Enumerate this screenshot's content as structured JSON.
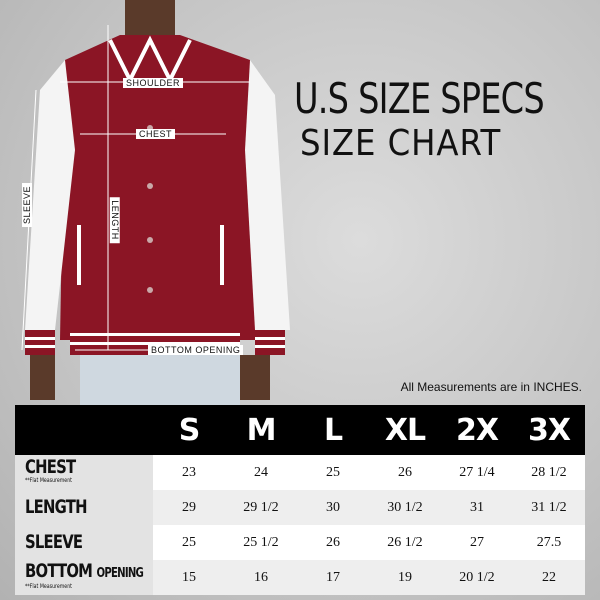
{
  "title": "U.S SIZE SPECS",
  "subtitle": "SIZE CHART",
  "note": "All Measurements are in INCHES.",
  "diagram_labels": {
    "shoulder": "SHOULDER",
    "chest": "CHEST",
    "sleeve": "SLEEVE",
    "length": "LENGTH",
    "bottom_opening": "BOTTOM OPENING"
  },
  "colors": {
    "jacket_body": "#8b1525",
    "sleeves": "#f4f4f4",
    "header_bg": "#000000"
  },
  "table": {
    "sizes": [
      "S",
      "M",
      "L",
      "XL",
      "2X",
      "3X"
    ],
    "rows": [
      {
        "label": "CHEST",
        "label_suffix": "",
        "footnote": "**Flat Measurement",
        "values": [
          "23",
          "24",
          "25",
          "26",
          "27 1/4",
          "28 1/2"
        ]
      },
      {
        "label": "LENGTH",
        "label_suffix": "",
        "footnote": "",
        "values": [
          "29",
          "29 1/2",
          "30",
          "30 1/2",
          "31",
          "31 1/2"
        ]
      },
      {
        "label": "SLEEVE",
        "label_suffix": "",
        "footnote": "",
        "values": [
          "25",
          "25 1/2",
          "26",
          "26 1/2",
          "27",
          "27.5"
        ]
      },
      {
        "label": "BOTTOM",
        "label_suffix": "OPENING",
        "footnote": "**Flat Measurement",
        "values": [
          "15",
          "16",
          "17",
          "19",
          "20 1/2",
          "22"
        ]
      }
    ]
  }
}
